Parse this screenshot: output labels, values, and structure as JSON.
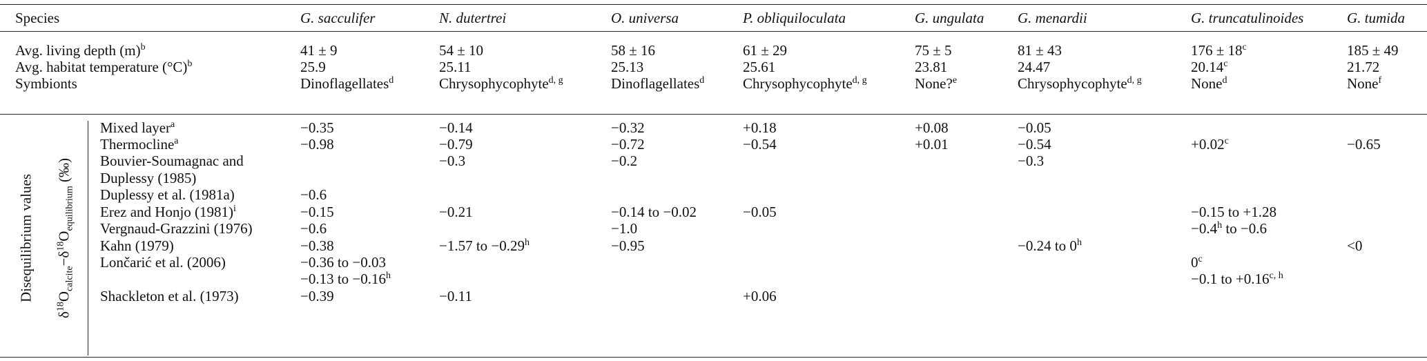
{
  "header": {
    "first": "Species",
    "species": [
      "G. sacculifer",
      "N. dutertrei",
      "O. universa",
      "P. obliquiloculata",
      "G. ungulata",
      "G. menardii",
      "G. truncatulinoides",
      "G. tumida"
    ]
  },
  "props": [
    {
      "label": "Avg. living depth (m)",
      "sup": "b",
      "cells": [
        {
          "v": "41 ± 9",
          "s": ""
        },
        {
          "v": "54 ± 10",
          "s": ""
        },
        {
          "v": "58 ± 16",
          "s": ""
        },
        {
          "v": "61 ± 29",
          "s": ""
        },
        {
          "v": "75 ± 5",
          "s": ""
        },
        {
          "v": "81 ± 43",
          "s": ""
        },
        {
          "v": "176 ± 18",
          "s": "c"
        },
        {
          "v": "185 ± 49",
          "s": ""
        }
      ]
    },
    {
      "label": "Avg. habitat temperature (°C)",
      "sup": "b",
      "cells": [
        {
          "v": "25.9",
          "s": ""
        },
        {
          "v": "25.11",
          "s": ""
        },
        {
          "v": "25.13",
          "s": ""
        },
        {
          "v": "25.61",
          "s": ""
        },
        {
          "v": "23.81",
          "s": ""
        },
        {
          "v": "24.47",
          "s": ""
        },
        {
          "v": "20.14",
          "s": "c"
        },
        {
          "v": "21.72",
          "s": ""
        }
      ]
    },
    {
      "label": "Symbionts",
      "sup": "",
      "cells": [
        {
          "v": "Dinoflagellates",
          "s": "d"
        },
        {
          "v": "Chrysophycophyte",
          "s": "d, g"
        },
        {
          "v": "Dinoflagellates",
          "s": "d"
        },
        {
          "v": "Chrysophycophyte",
          "s": "d, g"
        },
        {
          "v": "None?",
          "s": "e"
        },
        {
          "v": "Chrysophycophyte",
          "s": "d, g"
        },
        {
          "v": "None",
          "s": "d"
        },
        {
          "v": "None",
          "s": "f"
        }
      ]
    }
  ],
  "side": {
    "outer": "Disequilibrium values",
    "d": "δ",
    "n": "18",
    "o1": "O",
    "sub1": "calcite",
    "dash": "−",
    "sub2": "equilibrium",
    "unit": "(‰)"
  },
  "rows": [
    {
      "label": "Mixed layer",
      "sup": "a",
      "cells": [
        {
          "c": 0,
          "v": "−0.35"
        },
        {
          "c": 1,
          "v": "−0.14"
        },
        {
          "c": 2,
          "v": "−0.32"
        },
        {
          "c": 3,
          "v": "+0.18"
        },
        {
          "c": 4,
          "v": "+0.08"
        },
        {
          "c": 5,
          "v": "−0.05"
        }
      ]
    },
    {
      "label": "Thermocline",
      "sup": "a",
      "cells": [
        {
          "c": 0,
          "v": "−0.98"
        },
        {
          "c": 1,
          "v": "−0.79"
        },
        {
          "c": 2,
          "v": "−0.72"
        },
        {
          "c": 3,
          "v": "−0.54"
        },
        {
          "c": 4,
          "v": "+0.01"
        },
        {
          "c": 5,
          "v": "−0.54"
        },
        {
          "c": 6,
          "v": "+0.02",
          "s": "c"
        },
        {
          "c": 7,
          "v": "−0.65"
        }
      ]
    },
    {
      "label": "Bouvier-Soumagnac and",
      "sup": "",
      "cells": [
        {
          "c": 1,
          "v": "−0.3"
        },
        {
          "c": 2,
          "v": "−0.2"
        },
        {
          "c": 5,
          "v": "−0.3"
        }
      ]
    },
    {
      "label": "Duplessy (1985)",
      "sup": "",
      "cells": []
    },
    {
      "label": "Duplessy et al. (1981a)",
      "sup": "",
      "cells": [
        {
          "c": 0,
          "v": "−0.6"
        }
      ]
    },
    {
      "label": "Erez and Honjo (1981)",
      "sup": "i",
      "cells": [
        {
          "c": 0,
          "v": "−0.15"
        },
        {
          "c": 1,
          "v": "−0.21"
        },
        {
          "c": 2,
          "v": "−0.14 to −0.02"
        },
        {
          "c": 3,
          "v": "−0.05"
        },
        {
          "c": 6,
          "v": "−0.15 to +1.28"
        }
      ]
    },
    {
      "label": "Vergnaud-Grazzini (1976)",
      "sup": "",
      "cells": [
        {
          "c": 0,
          "v": "−0.6"
        },
        {
          "c": 2,
          "v": "−1.0"
        },
        {
          "c": 6,
          "v": "−0.4",
          "s": "h",
          "t": " to −0.6"
        }
      ]
    },
    {
      "label": "Kahn (1979)",
      "sup": "",
      "cells": [
        {
          "c": 0,
          "v": "−0.38"
        },
        {
          "c": 1,
          "v": "−1.57 to −0.29",
          "s": "h"
        },
        {
          "c": 2,
          "v": "−0.95"
        },
        {
          "c": 5,
          "v": "−0.24 to 0",
          "s": "h"
        },
        {
          "c": 7,
          "v": "<0"
        }
      ]
    },
    {
      "label": "Lončarić et al. (2006)",
      "sup": "",
      "cells": [
        {
          "c": 0,
          "v": "−0.36 to −0.03"
        },
        {
          "c": 6,
          "v": "0",
          "s": "c"
        }
      ]
    },
    {
      "label": "",
      "sup": "",
      "cells": [
        {
          "c": 0,
          "v": "−0.13 to −0.16",
          "s": "h"
        },
        {
          "c": 6,
          "v": "−0.1 to +0.16",
          "s": "c, h"
        }
      ]
    },
    {
      "label": "Shackleton et al. (1973)",
      "sup": "",
      "cells": [
        {
          "c": 0,
          "v": "−0.39"
        },
        {
          "c": 1,
          "v": "−0.11"
        },
        {
          "c": 3,
          "v": "+0.06"
        }
      ]
    }
  ]
}
